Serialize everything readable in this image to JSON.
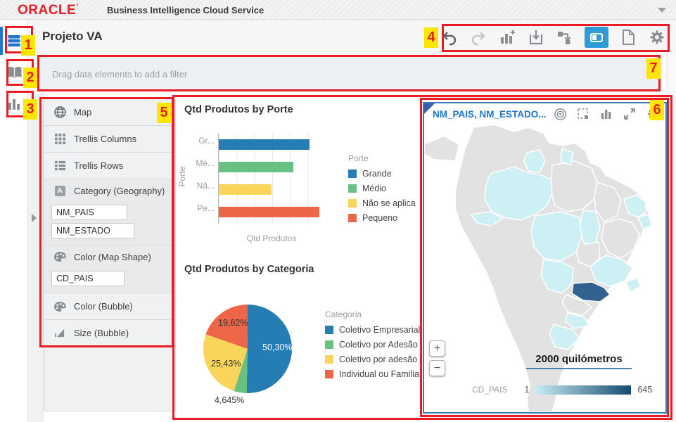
{
  "app": {
    "brand": "ORACLE",
    "brand_mark": "’",
    "product": "Business Intelligence Cloud Service",
    "title": "Projeto VA"
  },
  "theme": {
    "oracle-red": "#e81c24",
    "accent-blue": "#2e9ad6",
    "sidebar-active-blue": "#2277cc",
    "annotation-red": "#ea1d25",
    "annotation-yellow": "#ffe600",
    "map-border-blue": "#3c7bb8",
    "map-title-blue": "#2175c9",
    "map-land": "#e2e2e2",
    "map-state": "#cdf0f5",
    "map-selected": "#31618f",
    "legend-grad-start": "#c5ebf3",
    "legend-grad-end": "#174a70"
  },
  "sidebar": {
    "icons": [
      "data-elements",
      "data-sources-book",
      "visualizations-chart"
    ]
  },
  "toolbar": {
    "icons": [
      "undo",
      "redo",
      "add-visualization",
      "save",
      "data-flow",
      "canvas-layout",
      "new-page",
      "settings"
    ],
    "active": "canvas-layout"
  },
  "filter_bar": {
    "placeholder": "Drag data elements to add a filter"
  },
  "panel": {
    "viz_type": {
      "label": "Map",
      "icon": "globe"
    },
    "rows": [
      {
        "label": "Trellis Columns",
        "icon": "trellis-columns"
      },
      {
        "label": "Trellis Rows",
        "icon": "trellis-rows"
      }
    ],
    "sections": [
      {
        "label": "Category (Geography)",
        "icon": "text-attribute",
        "fields": [
          "NM_PAIS",
          "NM_ESTADO"
        ]
      },
      {
        "label": "Color (Map Shape)",
        "icon": "palette",
        "fields": [
          "CD_PAIS"
        ]
      },
      {
        "label": "Color (Bubble)",
        "icon": "palette",
        "fields": []
      },
      {
        "label": "Size (Bubble)",
        "icon": "size",
        "fields": []
      }
    ]
  },
  "map_panel": {
    "title": "NM_PAIS, NM_ESTADO...",
    "icons": [
      "target",
      "marquee-select",
      "chart-type",
      "maximize",
      "settings"
    ],
    "zoom_in": "+",
    "zoom_out": "−",
    "scale_label": "2000 quilómetros",
    "legend": {
      "label": "CD_PAIS",
      "min": "1",
      "max": "645"
    }
  },
  "annotations": {
    "labels": [
      "1",
      "2",
      "3",
      "4",
      "5",
      "6",
      "7"
    ]
  },
  "chart_data": [
    {
      "type": "bar",
      "orientation": "horizontal",
      "title": "Qtd Produtos by Porte",
      "xlabel": "Qtd Produtos",
      "ylabel": "Porte",
      "categories": [
        "Grande",
        "Médio",
        "Não se aplica",
        "Pequeno"
      ],
      "axis_tick_labels": [
        "Gr...",
        "Mé...",
        "Nã...",
        "Pe..."
      ],
      "values_relative": [
        0.9,
        0.74,
        0.52,
        1.0
      ],
      "values_note": "no numeric axis labels visible; lengths estimated relative to longest bar (Pequeno)",
      "legend_title": "Porte",
      "legend": [
        "Grande",
        "Médio",
        "Não se aplica",
        "Pequeno"
      ],
      "colors": [
        "#267db3",
        "#68c182",
        "#fad55c",
        "#ed6647"
      ],
      "grid": "vertical"
    },
    {
      "type": "pie",
      "title": "Qtd Produtos by Categoria",
      "labels": [
        "Coletivo Empresarial",
        "Coletivo por Adesão",
        "Coletivo por adesão",
        "Individual ou Familiar"
      ],
      "values_pct": [
        50.3,
        4.645,
        25.43,
        19.62
      ],
      "value_labels": [
        "50,30%",
        "4,645%",
        "25,43%",
        "19,62%"
      ],
      "legend_title": "Categoria",
      "colors": [
        "#267db3",
        "#68c182",
        "#fad55c",
        "#ed6647"
      ],
      "start_angle_deg": 0,
      "direction": "clockwise"
    },
    {
      "type": "map",
      "title": "NM_PAIS, NM_ESTADO...",
      "description": "Choropleth of Brazilian states on a South America basemap; several states shaded light cyan, one state (São Paulo) dark blue",
      "color_metric": "CD_PAIS",
      "color_scale": {
        "min": 1,
        "max": 645
      },
      "scale_bar": "2000 quilómetros"
    }
  ]
}
